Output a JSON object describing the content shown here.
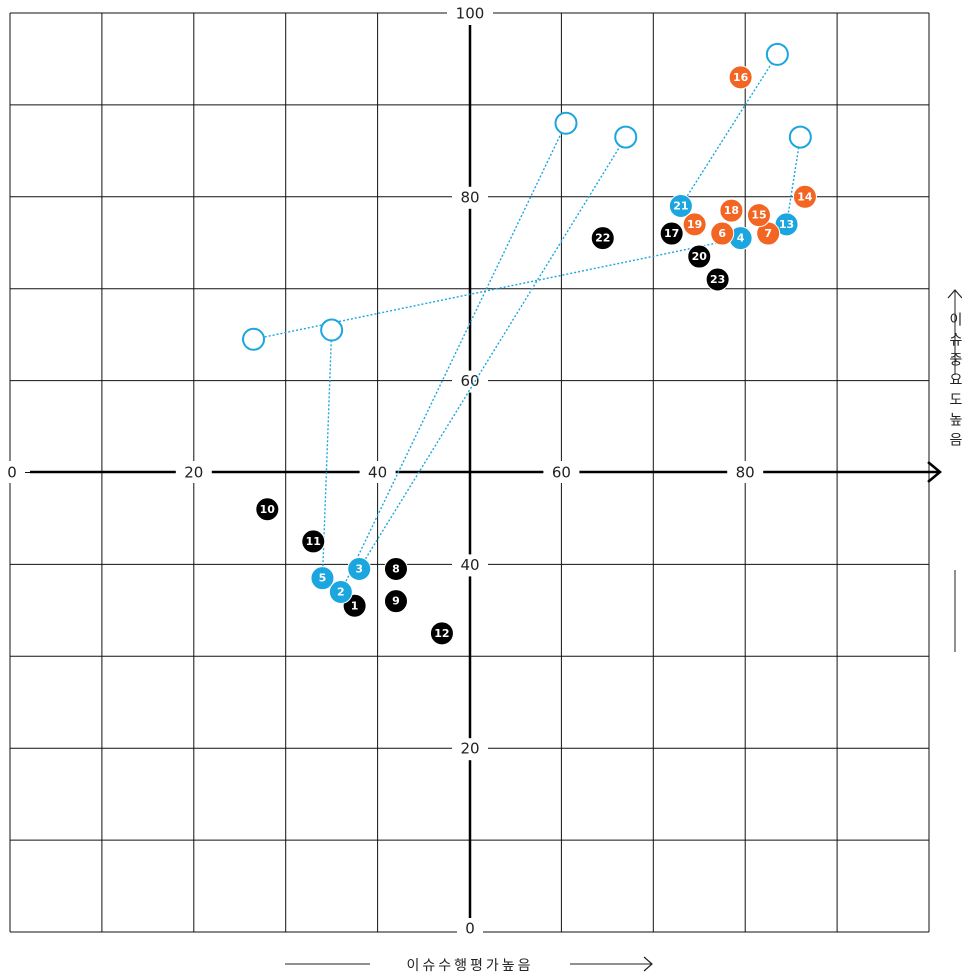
{
  "chart_data": {
    "type": "scatter",
    "xlabel": "이슈수행평가높음",
    "ylabel": "이슈중요도높음",
    "xlim": [
      0,
      100
    ],
    "ylim": [
      0,
      100
    ],
    "x_ticks": [
      0,
      20,
      40,
      60,
      80
    ],
    "y_ticks": [
      0,
      20,
      40,
      60,
      80,
      100
    ],
    "grid": true,
    "colors": {
      "black": "#000000",
      "blue": "#1ba6e0",
      "orange": "#f26522",
      "connector": "#1ba6e0"
    },
    "series": [
      {
        "color": "black",
        "points": [
          {
            "label": "1",
            "x": 37.5,
            "y": 35.5
          },
          {
            "label": "8",
            "x": 42,
            "y": 39.5
          },
          {
            "label": "9",
            "x": 42,
            "y": 36
          },
          {
            "label": "10",
            "x": 28,
            "y": 46
          },
          {
            "label": "11",
            "x": 33,
            "y": 42.5
          },
          {
            "label": "12",
            "x": 47,
            "y": 32.5
          },
          {
            "label": "17",
            "x": 72,
            "y": 76
          },
          {
            "label": "20",
            "x": 75,
            "y": 73.5
          },
          {
            "label": "22",
            "x": 64.5,
            "y": 75.5
          },
          {
            "label": "23",
            "x": 77,
            "y": 71
          }
        ]
      },
      {
        "color": "blue",
        "points": [
          {
            "label": "2",
            "x": 36,
            "y": 37
          },
          {
            "label": "3",
            "x": 38,
            "y": 39.5
          },
          {
            "label": "4",
            "x": 79.5,
            "y": 75.5
          },
          {
            "label": "5",
            "x": 34,
            "y": 38.5
          },
          {
            "label": "13",
            "x": 84.5,
            "y": 77
          },
          {
            "label": "21",
            "x": 73,
            "y": 79
          }
        ]
      },
      {
        "color": "orange",
        "points": [
          {
            "label": "6",
            "x": 77.5,
            "y": 76
          },
          {
            "label": "7",
            "x": 82.5,
            "y": 76
          },
          {
            "label": "14",
            "x": 86.5,
            "y": 80
          },
          {
            "label": "15",
            "x": 81.5,
            "y": 78
          },
          {
            "label": "16",
            "x": 79.5,
            "y": 93
          },
          {
            "label": "18",
            "x": 78.5,
            "y": 78.5
          },
          {
            "label": "19",
            "x": 74.5,
            "y": 77
          }
        ]
      }
    ],
    "targets": [
      {
        "from": "2",
        "x": 60.5,
        "y": 88
      },
      {
        "from": "3",
        "x": 67,
        "y": 86.5
      },
      {
        "from": "4",
        "x": 26.5,
        "y": 64.5
      },
      {
        "from": "5",
        "x": 35,
        "y": 65.5
      },
      {
        "from": "13",
        "x": 86,
        "y": 86.5
      },
      {
        "from": "21",
        "x": 83.5,
        "y": 95.5
      }
    ]
  }
}
